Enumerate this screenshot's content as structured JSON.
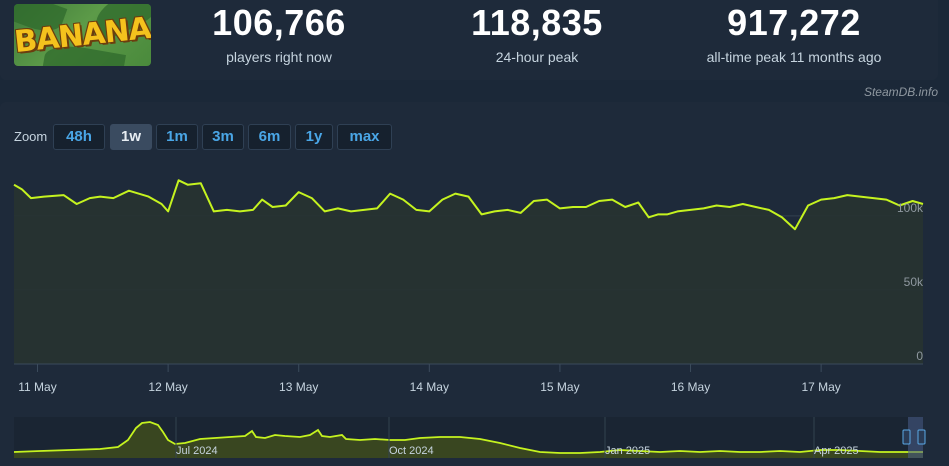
{
  "stats": [
    {
      "value": "106,766",
      "label": "players right now"
    },
    {
      "value": "118,835",
      "label": "24-hour peak"
    },
    {
      "value": "917,272",
      "label": "all-time peak 11 months ago"
    }
  ],
  "logo": {
    "text": "BANANA"
  },
  "credit": "SteamDB.info",
  "zoom": {
    "label": "Zoom",
    "buttons": [
      "48h",
      "1w",
      "1m",
      "3m",
      "6m",
      "1y",
      "max"
    ],
    "active": "1w"
  },
  "colors": {
    "line": "#c5f31f",
    "background": "#1e2a3a",
    "accent": "#4aa6e6"
  },
  "chart_data": {
    "type": "line",
    "y_ticks": [
      0,
      50000,
      100000
    ],
    "y_tick_labels": [
      "0",
      "50k",
      "100k"
    ],
    "ylim": [
      0,
      135000
    ],
    "x_ticks": [
      "11 May",
      "12 May",
      "13 May",
      "14 May",
      "15 May",
      "16 May",
      "17 May"
    ],
    "xlim": [
      -0.18,
      6.78
    ],
    "grid": true,
    "series": [
      {
        "x": [
          -0.18,
          -0.12,
          -0.05,
          0.05,
          0.2,
          0.3,
          0.4,
          0.48,
          0.58,
          0.7,
          0.85,
          0.95,
          1.0,
          1.08,
          1.15,
          1.25,
          1.35,
          1.45,
          1.55,
          1.65,
          1.72,
          1.8,
          1.9,
          2.0,
          2.1,
          2.2,
          2.3,
          2.4,
          2.5,
          2.6,
          2.7,
          2.8,
          2.9,
          3.0,
          3.1,
          3.2,
          3.3,
          3.4,
          3.5,
          3.6,
          3.7,
          3.8,
          3.9,
          4.0,
          4.1,
          4.2,
          4.3,
          4.4,
          4.5,
          4.6,
          4.68,
          4.75,
          4.82,
          4.9,
          5.0,
          5.1,
          5.2,
          5.3,
          5.4,
          5.5,
          5.6,
          5.7,
          5.8,
          5.9,
          6.0,
          6.1,
          6.2,
          6.3,
          6.4,
          6.5,
          6.6,
          6.7,
          6.78
        ],
        "y": [
          121000,
          118000,
          112000,
          113000,
          114000,
          108000,
          112000,
          113000,
          112000,
          117000,
          113000,
          108000,
          103000,
          124000,
          121000,
          122000,
          103000,
          104000,
          103000,
          104000,
          111000,
          106000,
          107000,
          116000,
          112000,
          103000,
          105000,
          103000,
          104000,
          105000,
          115000,
          111000,
          104000,
          103000,
          111000,
          115000,
          113000,
          101000,
          103000,
          104000,
          102000,
          110000,
          111000,
          105000,
          106000,
          106000,
          110000,
          111000,
          106000,
          109000,
          99000,
          101000,
          101000,
          103000,
          104000,
          105000,
          107000,
          106000,
          108000,
          106000,
          104000,
          99000,
          91000,
          107000,
          111000,
          112000,
          114000,
          113000,
          112000,
          111000,
          107000,
          110000,
          108000
        ]
      }
    ],
    "overview": {
      "x_ticks": [
        "Jul 2024",
        "Oct 2024",
        "Jan 2025",
        "Apr 2025"
      ]
    }
  }
}
